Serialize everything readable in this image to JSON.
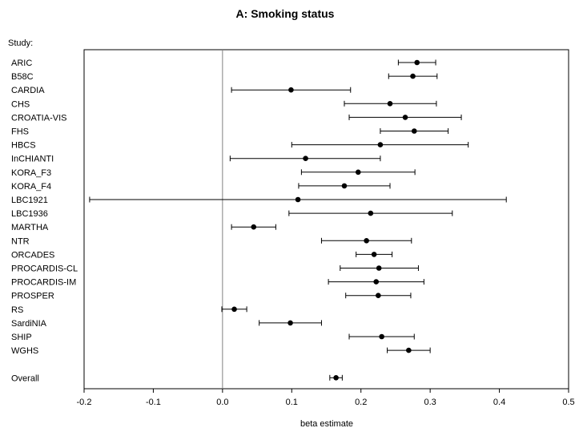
{
  "chart_data": {
    "type": "forest",
    "title": "A: Smoking status",
    "study_header": "Study:",
    "xlabel": "beta estimate",
    "xlim": [
      -0.2,
      0.5
    ],
    "xticks": [
      "-0.2",
      "-0.1",
      "0.0",
      "0.1",
      "0.2",
      "0.3",
      "0.4",
      "0.5"
    ],
    "reference_line_x": 0.0,
    "studies": [
      {
        "name": "ARIC",
        "estimate": 0.281,
        "lower": 0.254,
        "upper": 0.308
      },
      {
        "name": "B58C",
        "estimate": 0.275,
        "lower": 0.24,
        "upper": 0.31
      },
      {
        "name": "CARDIA",
        "estimate": 0.099,
        "lower": 0.013,
        "upper": 0.185
      },
      {
        "name": "CHS",
        "estimate": 0.242,
        "lower": 0.176,
        "upper": 0.309
      },
      {
        "name": "CROATIA-VIS",
        "estimate": 0.264,
        "lower": 0.183,
        "upper": 0.345
      },
      {
        "name": "FHS",
        "estimate": 0.277,
        "lower": 0.228,
        "upper": 0.326
      },
      {
        "name": "HBCS",
        "estimate": 0.228,
        "lower": 0.1,
        "upper": 0.355
      },
      {
        "name": "InCHIANTI",
        "estimate": 0.12,
        "lower": 0.011,
        "upper": 0.228
      },
      {
        "name": "KORA_F3",
        "estimate": 0.196,
        "lower": 0.114,
        "upper": 0.278
      },
      {
        "name": "KORA_F4",
        "estimate": 0.176,
        "lower": 0.11,
        "upper": 0.242
      },
      {
        "name": "LBC1921",
        "estimate": 0.109,
        "lower": -0.192,
        "upper": 0.41
      },
      {
        "name": "LBC1936",
        "estimate": 0.214,
        "lower": 0.096,
        "upper": 0.332
      },
      {
        "name": "MARTHA",
        "estimate": 0.045,
        "lower": 0.013,
        "upper": 0.077
      },
      {
        "name": "NTR",
        "estimate": 0.208,
        "lower": 0.143,
        "upper": 0.273
      },
      {
        "name": "ORCADES",
        "estimate": 0.219,
        "lower": 0.193,
        "upper": 0.245
      },
      {
        "name": "PROCARDIS-CL",
        "estimate": 0.226,
        "lower": 0.17,
        "upper": 0.283
      },
      {
        "name": "PROCARDIS-IM",
        "estimate": 0.222,
        "lower": 0.153,
        "upper": 0.291
      },
      {
        "name": "PROSPER",
        "estimate": 0.225,
        "lower": 0.178,
        "upper": 0.272
      },
      {
        "name": "RS",
        "estimate": 0.017,
        "lower": -0.001,
        "upper": 0.035
      },
      {
        "name": "SardiNIA",
        "estimate": 0.098,
        "lower": 0.053,
        "upper": 0.143
      },
      {
        "name": "SHIP",
        "estimate": 0.23,
        "lower": 0.183,
        "upper": 0.277
      },
      {
        "name": "WGHS",
        "estimate": 0.269,
        "lower": 0.238,
        "upper": 0.3
      }
    ],
    "overall": {
      "name": "Overall",
      "estimate": 0.164,
      "lower": 0.155,
      "upper": 0.173
    },
    "colors": {
      "points": "#000000",
      "reference_line": "#808080",
      "frame": "#000000"
    }
  }
}
